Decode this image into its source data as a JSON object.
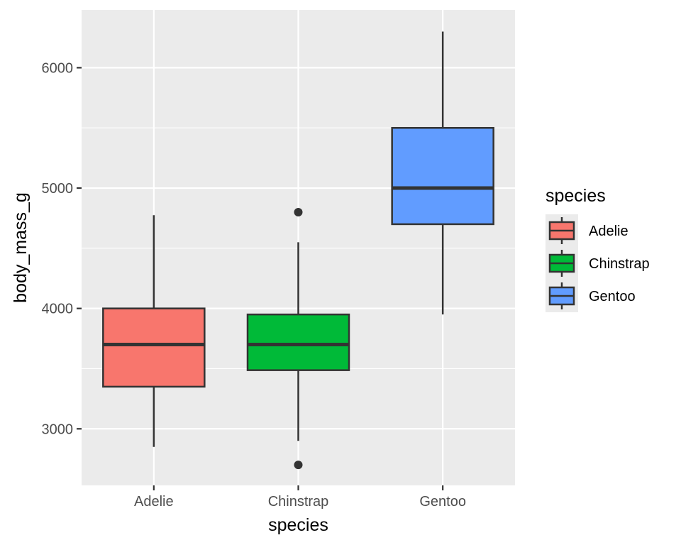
{
  "chart_data": {
    "type": "boxplot",
    "title": "",
    "xlabel": "species",
    "ylabel": "body_mass_g",
    "ylim": [
      2530,
      6480
    ],
    "y_ticks": [
      3000,
      4000,
      5000,
      6000
    ],
    "y_tick_labels": [
      "3000",
      "4000",
      "5000",
      "6000"
    ],
    "y_minor_ticks": [
      3500,
      4500,
      5500
    ],
    "grid": true,
    "categories": [
      "Adelie",
      "Chinstrap",
      "Gentoo"
    ],
    "boxes": [
      {
        "category": "Adelie",
        "min": 2850,
        "q1": 3350,
        "median": 3700,
        "q3": 4000,
        "max": 4775,
        "outliers": [],
        "color": "#F8766D"
      },
      {
        "category": "Chinstrap",
        "min": 2900,
        "q1": 3487,
        "median": 3700,
        "q3": 3950,
        "max": 4550,
        "outliers": [
          4800,
          2700
        ],
        "color": "#00BA38"
      },
      {
        "category": "Gentoo",
        "min": 3950,
        "q1": 4700,
        "median": 5000,
        "q3": 5500,
        "max": 6300,
        "outliers": [],
        "color": "#619CFF"
      }
    ],
    "legend": {
      "title": "species",
      "position": "right",
      "entries": [
        {
          "label": "Adelie",
          "color": "#F8766D"
        },
        {
          "label": "Chinstrap",
          "color": "#00BA38"
        },
        {
          "label": "Gentoo",
          "color": "#619CFF"
        }
      ]
    },
    "colors": {
      "panel_background": "#EBEBEB",
      "grid": "#FFFFFF",
      "outline": "#333333"
    }
  }
}
